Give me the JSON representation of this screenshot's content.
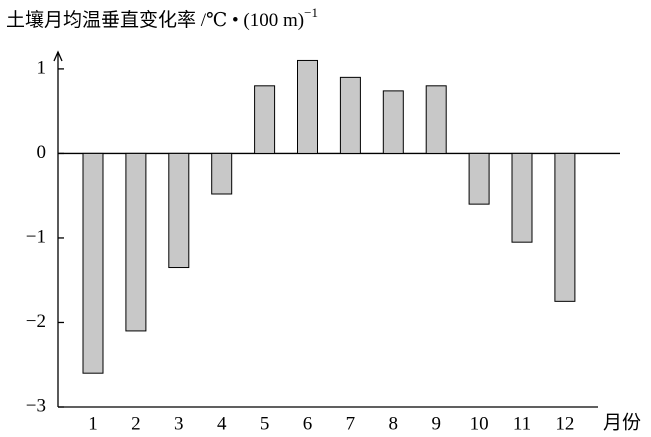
{
  "chart_data": {
    "type": "bar",
    "title": "土壤月均温垂直变化率 /℃ • (100 m)",
    "title_superscript": "−1",
    "x_label": "月份",
    "categories": [
      "1",
      "2",
      "3",
      "4",
      "5",
      "6",
      "7",
      "8",
      "9",
      "10",
      "11",
      "12"
    ],
    "values": [
      -2.6,
      -2.1,
      -1.35,
      -0.48,
      0.8,
      1.1,
      0.9,
      0.74,
      0.8,
      -0.6,
      -1.05,
      -1.75
    ],
    "color": "#c8c8c8",
    "ylim": [
      -3,
      1.2
    ],
    "yticks": [
      1,
      0,
      {
        "value": -1,
        "label": "−1"
      },
      {
        "value": -2,
        "label": "−2"
      },
      {
        "value": -3,
        "label": "−3"
      }
    ],
    "grid": false
  }
}
